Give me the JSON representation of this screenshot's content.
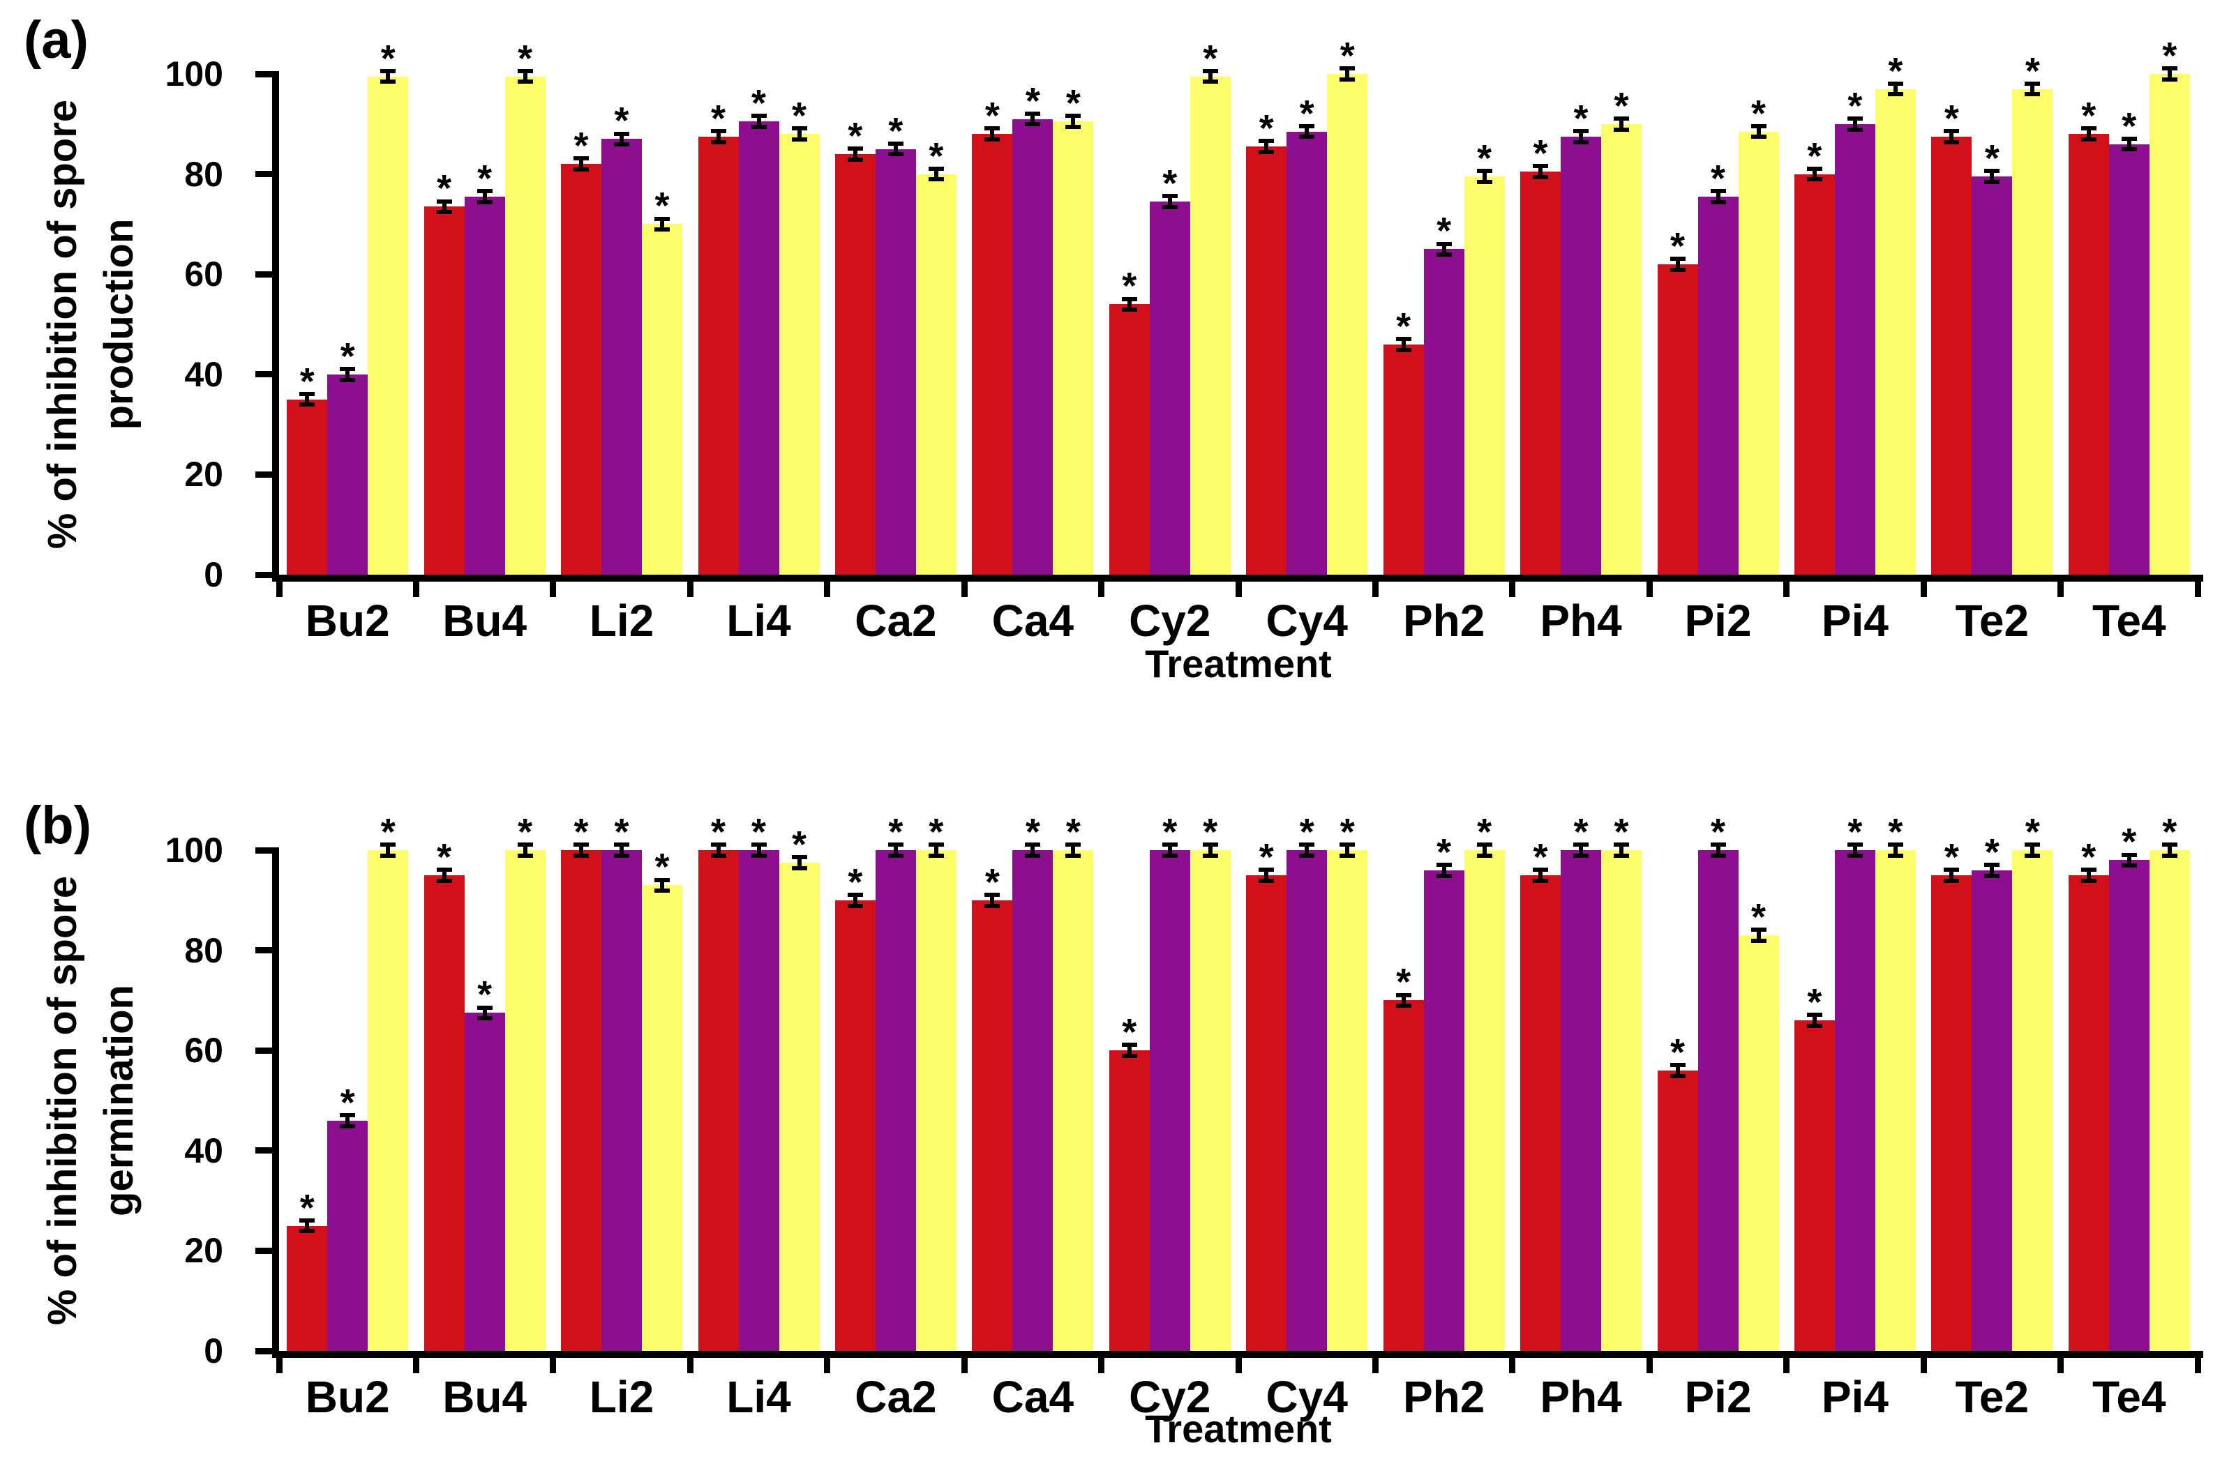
{
  "figure": {
    "panels": [
      {
        "id": "a",
        "label": "(a)",
        "y_axis_title_line1": "% of inhibition of spore",
        "y_axis_title_line2": "production",
        "x_axis_title": "Treatment"
      },
      {
        "id": "b",
        "label": "(b)",
        "y_axis_title_line1": "% of inhibition of spore",
        "y_axis_title_line2": "germination",
        "x_axis_title": "Treatment"
      }
    ]
  },
  "colors": {
    "red_series": "#d11019",
    "purple_series": "#8d0f8f",
    "yellow_series": "#fdfd6a",
    "axis_and_text": "#000000"
  },
  "chart_data": [
    {
      "type": "bar",
      "panel": "a",
      "title": "",
      "xlabel": "Treatment",
      "ylabel": "% of inhibition of spore production",
      "ylim": [
        0,
        100
      ],
      "yticks": [
        0,
        20,
        40,
        60,
        80,
        100
      ],
      "grid": false,
      "legend": "none",
      "categories": [
        "Bu2",
        "Bu4",
        "Li2",
        "Li4",
        "Ca2",
        "Ca4",
        "Cy2",
        "Cy4",
        "Ph2",
        "Ph4",
        "Pi2",
        "Pi4",
        "Te2",
        "Te4"
      ],
      "series": [
        {
          "name": "red",
          "color": "#d11019",
          "values": [
            35,
            73.5,
            82,
            87.5,
            84,
            88,
            54,
            85.5,
            46,
            80.5,
            62,
            80,
            87.5,
            88
          ]
        },
        {
          "name": "purple",
          "color": "#8d0f8f",
          "values": [
            40,
            75.5,
            87,
            90.5,
            85,
            91,
            74.5,
            88.5,
            65,
            87.5,
            75.5,
            90,
            79.5,
            86
          ]
        },
        {
          "name": "yellow",
          "color": "#fdfd6a",
          "values": [
            99.5,
            99.5,
            70,
            88,
            80,
            90.5,
            99.5,
            100,
            79.5,
            90,
            88.5,
            97,
            97,
            100
          ]
        }
      ],
      "error_bars": {
        "shown": true,
        "approx_magnitude_pct": 1.5
      },
      "significance": "asterisk above every bar"
    },
    {
      "type": "bar",
      "panel": "b",
      "title": "",
      "xlabel": "Treatment",
      "ylabel": "% of inhibition of spore germination",
      "ylim": [
        0,
        100
      ],
      "yticks": [
        0,
        20,
        40,
        60,
        80,
        100
      ],
      "grid": false,
      "legend": "none",
      "categories": [
        "Bu2",
        "Bu4",
        "Li2",
        "Li4",
        "Ca2",
        "Ca4",
        "Cy2",
        "Cy4",
        "Ph2",
        "Ph4",
        "Pi2",
        "Pi4",
        "Te2",
        "Te4"
      ],
      "series": [
        {
          "name": "red",
          "color": "#d11019",
          "values": [
            25,
            95,
            100,
            100,
            90,
            90,
            60,
            95,
            70,
            95,
            56,
            66,
            95,
            95
          ]
        },
        {
          "name": "purple",
          "color": "#8d0f8f",
          "values": [
            46,
            67.5,
            100,
            100,
            100,
            100,
            100,
            100,
            96,
            100,
            100,
            100,
            96,
            98
          ]
        },
        {
          "name": "yellow",
          "color": "#fdfd6a",
          "values": [
            100,
            100,
            93,
            97.5,
            100,
            100,
            100,
            100,
            100,
            100,
            83,
            100,
            100,
            100
          ]
        }
      ],
      "error_bars": {
        "shown": true,
        "approx_magnitude_pct": 1.5
      },
      "significance": "asterisk above every bar"
    }
  ]
}
